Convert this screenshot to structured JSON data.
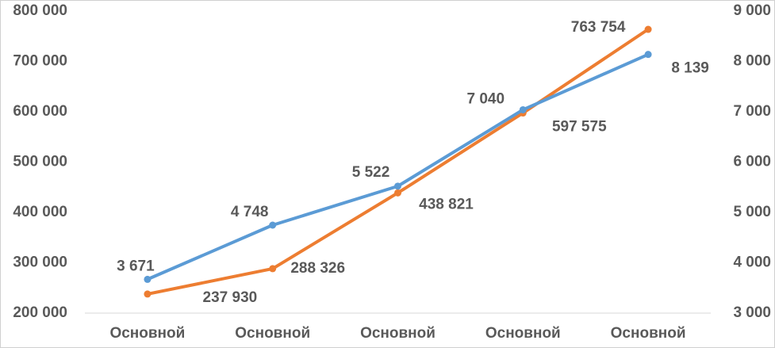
{
  "chart_data": {
    "type": "line",
    "categories": [
      "Основной",
      "Основной",
      "Основной",
      "Основной",
      "Основной"
    ],
    "series": [
      {
        "name": null,
        "color": "#ed7d31",
        "axis": "y",
        "values": [
          237930,
          288326,
          438821,
          597575,
          763754
        ],
        "value_labels": [
          "237 930",
          "288 326",
          "438 821",
          "597 575",
          "763 754"
        ]
      },
      {
        "name": null,
        "color": "#5b9bd5",
        "axis": "y2",
        "values": [
          3671,
          4748,
          5522,
          7040,
          8139
        ],
        "value_labels": [
          "3 671",
          "4 748",
          "5 522",
          "7 040",
          "8 139"
        ]
      }
    ],
    "ylim": [
      200000,
      800000
    ],
    "yticks": [
      {
        "value": 200000,
        "label": "200 000"
      },
      {
        "value": 300000,
        "label": "300 000"
      },
      {
        "value": 400000,
        "label": "400 000"
      },
      {
        "value": 500000,
        "label": "500 000"
      },
      {
        "value": 600000,
        "label": "600 000"
      },
      {
        "value": 700000,
        "label": "700 000"
      },
      {
        "value": 800000,
        "label": "800 000"
      }
    ],
    "y2lim": [
      3000,
      9000
    ],
    "y2ticks": [
      {
        "value": 3000,
        "label": "3 000"
      },
      {
        "value": 4000,
        "label": "4 000"
      },
      {
        "value": 5000,
        "label": "5 000"
      },
      {
        "value": 6000,
        "label": "6 000"
      },
      {
        "value": 7000,
        "label": "7 000"
      },
      {
        "value": 8000,
        "label": "8 000"
      },
      {
        "value": 9000,
        "label": "9 000"
      }
    ],
    "grid": false
  }
}
